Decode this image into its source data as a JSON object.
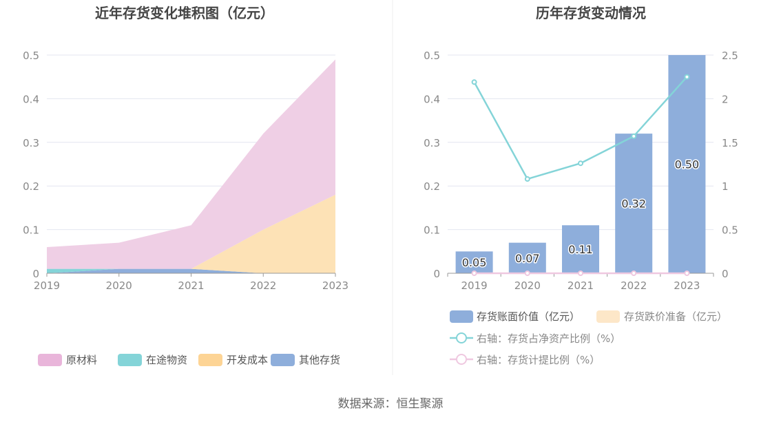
{
  "source_text": "数据来源：恒生聚源",
  "chart_data": [
    {
      "type": "area",
      "title": "近年存货变化堆积图（亿元）",
      "x": [
        "2019",
        "2020",
        "2021",
        "2022",
        "2023"
      ],
      "ylim": [
        0,
        0.5
      ],
      "yticks": [
        "0",
        "0.1",
        "0.2",
        "0.3",
        "0.4",
        "0.5"
      ],
      "stacked": true,
      "grid": true,
      "legend_position": "bottom",
      "series": [
        {
          "name": "其他存货",
          "color": "#8eaedb",
          "values": [
            0.0,
            0.01,
            0.01,
            0.0,
            0.0
          ]
        },
        {
          "name": "开发成本",
          "color": "#fde2b6",
          "values": [
            0.0,
            0.0,
            0.0,
            0.1,
            0.18
          ]
        },
        {
          "name": "在途物资",
          "color": "#84d4d8",
          "values": [
            0.01,
            0.0,
            0.0,
            0.0,
            0.0
          ]
        },
        {
          "name": "原材料",
          "color": "#efcfe5",
          "values": [
            0.05,
            0.06,
            0.1,
            0.22,
            0.31
          ]
        }
      ],
      "legend": [
        {
          "name": "原材料",
          "color": "#e9b5da"
        },
        {
          "name": "在途物资",
          "color": "#84d4d8"
        },
        {
          "name": "开发成本",
          "color": "#fdd495"
        },
        {
          "name": "其他存货",
          "color": "#8eaedb"
        }
      ]
    },
    {
      "type": "bar",
      "title": "历年存货变动情况",
      "categories": [
        "2019",
        "2020",
        "2021",
        "2022",
        "2023"
      ],
      "ylim": [
        0,
        0.5
      ],
      "yticks": [
        "0",
        "0.1",
        "0.2",
        "0.3",
        "0.4",
        "0.5"
      ],
      "y2lim": [
        0,
        2.5
      ],
      "y2ticks": [
        "0",
        "0.5",
        "1",
        "1.5",
        "2",
        "2.5"
      ],
      "grid": true,
      "legend_position": "bottom",
      "bar_series": [
        {
          "name": "存货账面价值（亿元）",
          "color": "#8eaedb",
          "values": [
            0.05,
            0.07,
            0.11,
            0.32,
            0.5
          ],
          "labels": [
            "0.05",
            "0.07",
            "0.11",
            "0.32",
            "0.50"
          ]
        },
        {
          "name": "存货跌价准备（亿元）",
          "color": "#fde7c8",
          "values": [
            0,
            0,
            0,
            0,
            0
          ]
        }
      ],
      "line_series": [
        {
          "name": "右轴：存货占净资产比例（%）",
          "axis": "right",
          "color": "#84d4d8",
          "values": [
            2.19,
            1.08,
            1.26,
            1.57,
            2.25
          ]
        },
        {
          "name": "右轴：存货计提比例（%）",
          "axis": "right",
          "color": "#efc8e0",
          "values": [
            0,
            0,
            0,
            0,
            0
          ]
        }
      ]
    }
  ]
}
